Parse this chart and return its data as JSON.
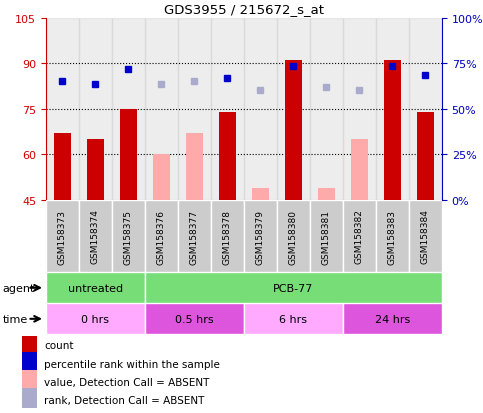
{
  "title": "GDS3955 / 215672_s_at",
  "samples": [
    "GSM158373",
    "GSM158374",
    "GSM158375",
    "GSM158376",
    "GSM158377",
    "GSM158378",
    "GSM158379",
    "GSM158380",
    "GSM158381",
    "GSM158382",
    "GSM158383",
    "GSM158384"
  ],
  "count_values": [
    67,
    65,
    75,
    null,
    null,
    74,
    null,
    91,
    null,
    null,
    91,
    74
  ],
  "count_absent": [
    null,
    null,
    null,
    60,
    67,
    null,
    49,
    null,
    49,
    65,
    null,
    null
  ],
  "rank_present": [
    84,
    83,
    88,
    null,
    null,
    85,
    null,
    89,
    null,
    null,
    89,
    86
  ],
  "rank_absent": [
    null,
    null,
    null,
    83,
    84,
    null,
    81,
    null,
    82,
    81,
    null,
    null
  ],
  "ylim_left": [
    45,
    105
  ],
  "ylim_right": [
    0,
    100
  ],
  "yticks_left": [
    45,
    60,
    75,
    90,
    105
  ],
  "yticks_right": [
    0,
    25,
    50,
    75,
    100
  ],
  "ytick_labels_left": [
    "45",
    "60",
    "75",
    "90",
    "105"
  ],
  "ytick_labels_right": [
    "0%",
    "25%",
    "50%",
    "75%",
    "100%"
  ],
  "bar_color_present": "#cc0000",
  "bar_color_absent": "#ffaaaa",
  "dot_color_present": "#0000cc",
  "dot_color_absent": "#aaaacc",
  "agent_groups": [
    {
      "label": "untreated",
      "start": 0,
      "end": 3,
      "color": "#77dd77"
    },
    {
      "label": "PCB-77",
      "start": 3,
      "end": 12,
      "color": "#77dd77"
    }
  ],
  "time_groups": [
    {
      "label": "0 hrs",
      "start": 0,
      "end": 3,
      "color": "#ffaaff"
    },
    {
      "label": "0.5 hrs",
      "start": 3,
      "end": 6,
      "color": "#ee66ee"
    },
    {
      "label": "6 hrs",
      "start": 6,
      "end": 9,
      "color": "#ffaaff"
    },
    {
      "label": "24 hrs",
      "start": 9,
      "end": 12,
      "color": "#ee66ee"
    }
  ],
  "legend_items": [
    {
      "label": "count",
      "color": "#cc0000"
    },
    {
      "label": "percentile rank within the sample",
      "color": "#0000cc"
    },
    {
      "label": "value, Detection Call = ABSENT",
      "color": "#ffaaaa"
    },
    {
      "label": "rank, Detection Call = ABSENT",
      "color": "#aaaacc"
    }
  ],
  "bar_width": 0.5,
  "left_tick_color": "#cc0000",
  "right_tick_color": "#0000bb"
}
